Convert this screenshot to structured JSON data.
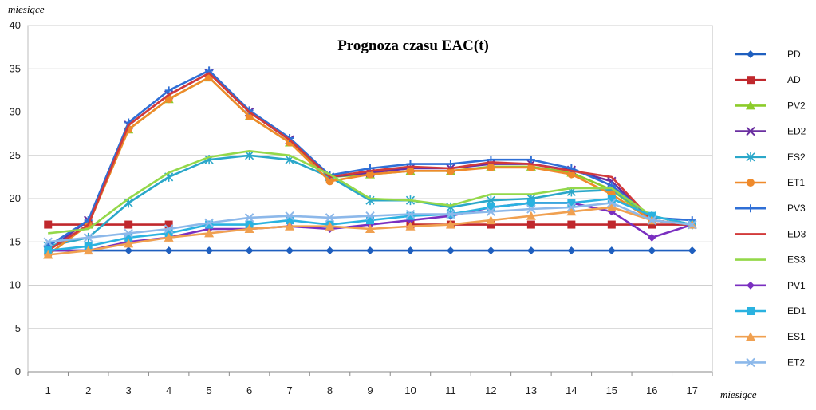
{
  "chart_data": {
    "type": "line",
    "title": "Prognoza czasu EAC(t)",
    "ylabel": "miesiące",
    "xlabel": "miesiące",
    "categories": [
      "1",
      "2",
      "3",
      "4",
      "5",
      "6",
      "7",
      "8",
      "9",
      "10",
      "11",
      "12",
      "13",
      "14",
      "15",
      "16",
      "17"
    ],
    "ylim": [
      0,
      40
    ],
    "yticks": [
      0,
      5,
      10,
      15,
      20,
      25,
      30,
      35,
      40
    ],
    "grid": true,
    "legend_position": "right",
    "series": [
      {
        "name": "PD",
        "color": "#1f5fbf",
        "marker": "diamond",
        "values": [
          14,
          14,
          14,
          14,
          14,
          14,
          14,
          14,
          14,
          14,
          14,
          14,
          14,
          14,
          14,
          14,
          14
        ]
      },
      {
        "name": "AD",
        "color": "#c0282d",
        "marker": "square",
        "values": [
          17,
          17,
          17,
          17,
          null,
          null,
          null,
          null,
          null,
          17,
          17,
          17,
          17,
          17,
          17,
          17,
          17
        ]
      },
      {
        "name": "PV2",
        "color": "#8ccc2a",
        "marker": "triangle",
        "values": [
          13.5,
          17,
          28,
          31.5,
          34,
          29.5,
          26.5,
          22.5,
          22.8,
          23.2,
          23.2,
          23.7,
          23.7,
          23,
          21,
          17.5,
          17
        ]
      },
      {
        "name": "ED2",
        "color": "#6a2fa0",
        "marker": "x",
        "values": [
          14,
          17.5,
          28.5,
          32,
          34.5,
          30,
          26.8,
          22.5,
          23,
          23.5,
          23.5,
          24,
          24,
          23.3,
          22,
          17.5,
          17
        ]
      },
      {
        "name": "ES2",
        "color": "#2aa7c9",
        "marker": "star",
        "values": [
          14.5,
          15.5,
          19.5,
          22.5,
          24.5,
          25,
          24.5,
          22.5,
          19.8,
          19.8,
          19,
          19.8,
          20,
          20.8,
          21,
          18,
          17
        ]
      },
      {
        "name": "ET1",
        "color": "#ef8a2b",
        "marker": "circle",
        "values": [
          13.5,
          17,
          28,
          31.5,
          34,
          29.5,
          26.5,
          22,
          22.8,
          23.2,
          23.2,
          23.6,
          23.6,
          22.8,
          20.5,
          17.5,
          17
        ]
      },
      {
        "name": "PV3",
        "color": "#2f6fd6",
        "marker": "plus",
        "values": [
          14.5,
          17.5,
          28.8,
          32.5,
          34.8,
          30.2,
          27,
          22.7,
          23.5,
          24,
          24,
          24.5,
          24.5,
          23.5,
          21.5,
          17.8,
          17.5
        ]
      },
      {
        "name": "ED3",
        "color": "#d23a3a",
        "marker": "none",
        "values": [
          14,
          17,
          28.5,
          32,
          34.5,
          30,
          26.8,
          22.5,
          23.2,
          23.7,
          23.5,
          24.2,
          24,
          23.2,
          22.5,
          17.5,
          17
        ]
      },
      {
        "name": "ES3",
        "color": "#94d84a",
        "marker": "none",
        "values": [
          16,
          16.5,
          20,
          23,
          24.8,
          25.5,
          25,
          22.8,
          20,
          19.8,
          19.2,
          20.5,
          20.5,
          21.2,
          21.2,
          18,
          17
        ]
      },
      {
        "name": "PV1",
        "color": "#7a2fc0",
        "marker": "diamond",
        "values": [
          14,
          14,
          15,
          15.5,
          16.5,
          16.5,
          16.8,
          16.5,
          17,
          17.5,
          18,
          19,
          19.5,
          19.5,
          18.5,
          15.5,
          17
        ]
      },
      {
        "name": "ED1",
        "color": "#2ab2e0",
        "marker": "square",
        "values": [
          14,
          14.5,
          15.5,
          16,
          17,
          17,
          17.5,
          17,
          17.5,
          18,
          18.2,
          19,
          19.5,
          19.5,
          20,
          18,
          17
        ]
      },
      {
        "name": "ES1",
        "color": "#f0a050",
        "marker": "triangle",
        "values": [
          13.5,
          14,
          14.8,
          15.5,
          16,
          16.5,
          16.8,
          16.8,
          16.5,
          16.8,
          17,
          17.5,
          18,
          18.5,
          19,
          17.5,
          17
        ]
      },
      {
        "name": "ET2",
        "color": "#8cb8ea",
        "marker": "x",
        "values": [
          15,
          15.5,
          16,
          16.5,
          17.2,
          17.8,
          18,
          17.8,
          18,
          18.2,
          18.2,
          18.5,
          18.8,
          19,
          19.5,
          17.5,
          17
        ]
      }
    ]
  }
}
